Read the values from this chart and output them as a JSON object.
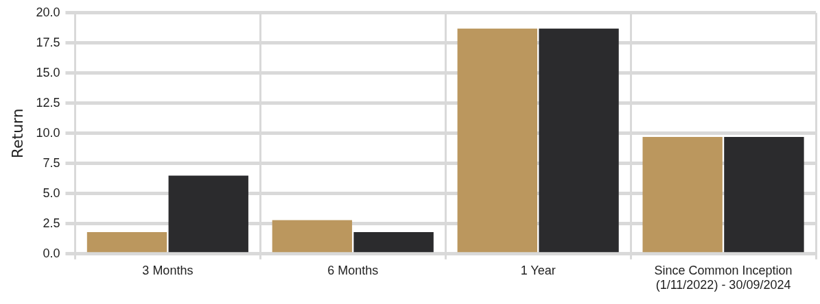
{
  "chart_data": {
    "type": "bar",
    "ylabel": "Return",
    "categories": [
      "3 Months",
      "6 Months",
      "1 Year",
      "Since Common Inception\n(1/11/2022) - 30/09/2024"
    ],
    "series": [
      {
        "color": "#bb975e",
        "values": [
          1.8,
          2.8,
          18.7,
          9.7
        ]
      },
      {
        "color": "#2b2b2d",
        "values": [
          6.5,
          1.8,
          18.7,
          9.7
        ]
      }
    ],
    "ylim": [
      0,
      20
    ],
    "yticks": [
      {
        "value": 0,
        "label": "0.0"
      },
      {
        "value": 2.5,
        "label": "2.5"
      },
      {
        "value": 5,
        "label": "5.0"
      },
      {
        "value": 7.5,
        "label": "7.5"
      },
      {
        "value": 10,
        "label": "10.0"
      },
      {
        "value": 12.5,
        "label": "12.5"
      },
      {
        "value": 15,
        "label": "15.0"
      },
      {
        "value": 17.5,
        "label": "17.5"
      },
      {
        "value": 20,
        "label": "20.0"
      }
    ],
    "grid": true,
    "legend": false
  }
}
